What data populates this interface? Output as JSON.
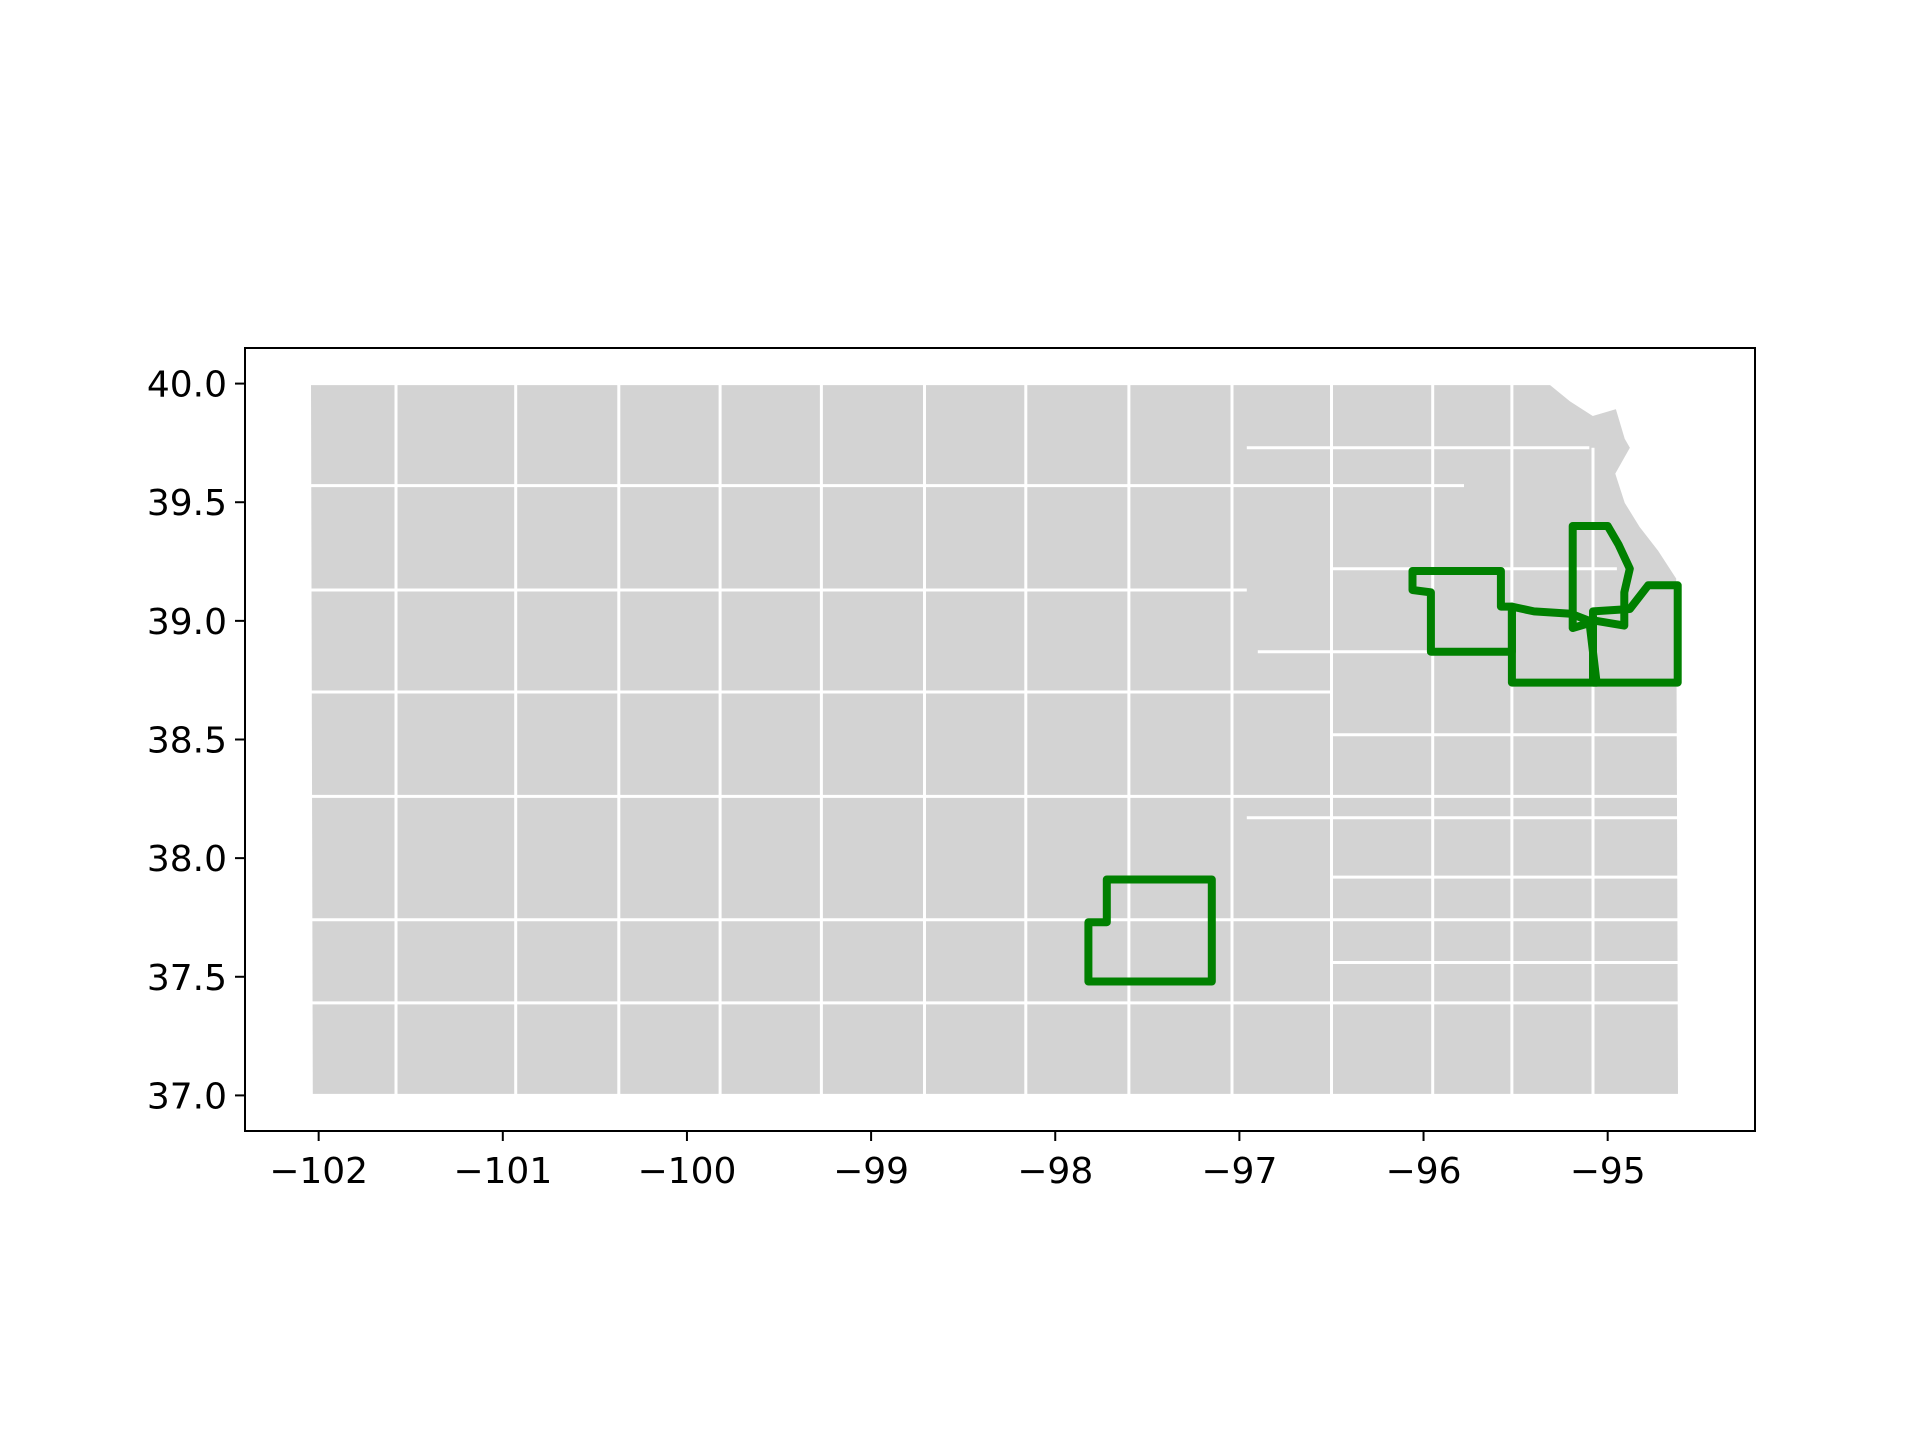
{
  "chart_data": {
    "type": "map",
    "title": "",
    "xlabel": "",
    "ylabel": "",
    "xlim": [
      -102.4,
      -94.2
    ],
    "ylim": [
      36.85,
      40.15
    ],
    "grid": false,
    "colors": {
      "county_fill": "#d3d3d3",
      "county_edge": "#ffffff",
      "highlight_edge": "#008000",
      "axes": "#000000"
    },
    "x_ticks": [
      {
        "value": -102,
        "label": "−102"
      },
      {
        "value": -101,
        "label": "−101"
      },
      {
        "value": -100,
        "label": "−100"
      },
      {
        "value": -99,
        "label": "−99"
      },
      {
        "value": -98,
        "label": "−98"
      },
      {
        "value": -97,
        "label": "−97"
      },
      {
        "value": -96,
        "label": "−96"
      },
      {
        "value": -95,
        "label": "−95"
      }
    ],
    "y_ticks": [
      {
        "value": 37.0,
        "label": "37.0"
      },
      {
        "value": 37.5,
        "label": "37.5"
      },
      {
        "value": 38.0,
        "label": "38.0"
      },
      {
        "value": 38.5,
        "label": "38.5"
      },
      {
        "value": 39.0,
        "label": "39.0"
      },
      {
        "value": 39.5,
        "label": "39.5"
      },
      {
        "value": 40.0,
        "label": "40.0"
      }
    ],
    "state_outline": [
      [
        -102.05,
        40.0
      ],
      [
        -95.31,
        40.0
      ],
      [
        -95.2,
        39.93
      ],
      [
        -95.08,
        39.87
      ],
      [
        -94.95,
        39.9
      ],
      [
        -94.9,
        39.77
      ],
      [
        -94.87,
        39.73
      ],
      [
        -94.95,
        39.62
      ],
      [
        -94.9,
        39.5
      ],
      [
        -94.82,
        39.4
      ],
      [
        -94.72,
        39.3
      ],
      [
        -94.62,
        39.18
      ],
      [
        -94.61,
        37.0
      ],
      [
        -102.04,
        37.0
      ]
    ],
    "county_lines": [
      [
        [
          -102.05,
          39.57
        ],
        [
          -95.78,
          39.57
        ]
      ],
      [
        [
          -102.05,
          39.13
        ],
        [
          -96.96,
          39.13
        ]
      ],
      [
        [
          -102.05,
          38.7
        ],
        [
          -96.5,
          38.7
        ]
      ],
      [
        [
          -102.05,
          38.26
        ],
        [
          -94.61,
          38.26
        ]
      ],
      [
        [
          -102.05,
          37.74
        ],
        [
          -94.61,
          37.74
        ]
      ],
      [
        [
          -102.05,
          37.39
        ],
        [
          -94.61,
          37.39
        ]
      ],
      [
        [
          -96.5,
          39.22
        ],
        [
          -94.95,
          39.22
        ]
      ],
      [
        [
          -96.9,
          38.87
        ],
        [
          -95.5,
          38.87
        ]
      ],
      [
        [
          -96.96,
          38.17
        ],
        [
          -94.61,
          38.17
        ]
      ],
      [
        [
          -96.5,
          38.52
        ],
        [
          -94.61,
          38.52
        ]
      ],
      [
        [
          -96.5,
          37.92
        ],
        [
          -94.61,
          37.92
        ]
      ],
      [
        [
          -96.5,
          37.56
        ],
        [
          -94.61,
          37.56
        ]
      ],
      [
        [
          -96.96,
          39.73
        ],
        [
          -95.1,
          39.73
        ]
      ],
      [
        [
          -101.58,
          40.0
        ],
        [
          -101.58,
          37.0
        ]
      ],
      [
        [
          -100.93,
          40.0
        ],
        [
          -100.93,
          37.0
        ]
      ],
      [
        [
          -100.37,
          40.0
        ],
        [
          -100.37,
          37.0
        ]
      ],
      [
        [
          -99.82,
          40.0
        ],
        [
          -99.82,
          37.0
        ]
      ],
      [
        [
          -99.27,
          40.0
        ],
        [
          -99.27,
          37.0
        ]
      ],
      [
        [
          -98.71,
          40.0
        ],
        [
          -98.71,
          37.0
        ]
      ],
      [
        [
          -98.16,
          40.0
        ],
        [
          -98.16,
          37.0
        ]
      ],
      [
        [
          -97.6,
          40.0
        ],
        [
          -97.6,
          37.0
        ]
      ],
      [
        [
          -97.04,
          40.0
        ],
        [
          -97.04,
          37.0
        ]
      ],
      [
        [
          -96.5,
          40.0
        ],
        [
          -96.5,
          37.0
        ]
      ],
      [
        [
          -95.95,
          40.0
        ],
        [
          -95.95,
          37.0
        ]
      ],
      [
        [
          -95.52,
          40.0
        ],
        [
          -95.52,
          37.0
        ]
      ],
      [
        [
          -95.08,
          39.73
        ],
        [
          -95.08,
          37.0
        ]
      ]
    ],
    "highlighted_counties": [
      {
        "outline": [
          [
            -97.82,
            37.48
          ],
          [
            -97.82,
            37.73
          ],
          [
            -97.72,
            37.73
          ],
          [
            -97.72,
            37.91
          ],
          [
            -97.15,
            37.91
          ],
          [
            -97.15,
            37.48
          ]
        ]
      },
      {
        "outline": [
          [
            -96.06,
            39.21
          ],
          [
            -95.58,
            39.21
          ],
          [
            -95.58,
            39.06
          ],
          [
            -95.52,
            39.06
          ],
          [
            -95.52,
            38.87
          ],
          [
            -95.96,
            38.87
          ],
          [
            -95.96,
            39.12
          ],
          [
            -96.06,
            39.13
          ]
        ]
      },
      {
        "outline": [
          [
            -95.52,
            39.06
          ],
          [
            -95.4,
            39.04
          ],
          [
            -95.2,
            39.03
          ],
          [
            -95.1,
            39.0
          ],
          [
            -95.06,
            38.74
          ],
          [
            -95.52,
            38.74
          ]
        ]
      },
      {
        "outline": [
          [
            -95.19,
            39.4
          ],
          [
            -95.0,
            39.4
          ],
          [
            -94.94,
            39.32
          ],
          [
            -94.88,
            39.22
          ],
          [
            -94.91,
            39.12
          ],
          [
            -94.91,
            38.98
          ],
          [
            -95.06,
            39.0
          ],
          [
            -95.19,
            38.97
          ]
        ]
      },
      {
        "outline": [
          [
            -95.08,
            39.04
          ],
          [
            -94.88,
            39.05
          ],
          [
            -94.78,
            39.15
          ],
          [
            -94.62,
            39.15
          ],
          [
            -94.62,
            38.74
          ],
          [
            -95.08,
            38.74
          ]
        ]
      }
    ]
  }
}
